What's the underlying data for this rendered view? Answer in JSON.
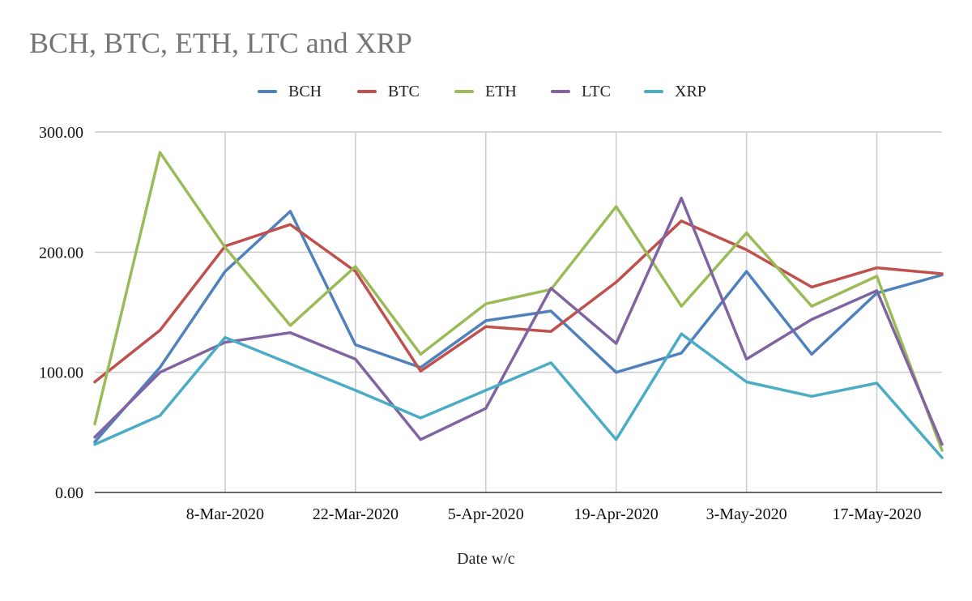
{
  "chart_data": {
    "type": "line",
    "title": "BCH, BTC, ETH, LTC and XRP",
    "xlabel": "Date w/c",
    "ylabel": "",
    "ylim": [
      0,
      300
    ],
    "yticks": [
      "0.00",
      "100.00",
      "200.00",
      "300.00"
    ],
    "x": [
      "23-Feb-2020",
      "1-Mar-2020",
      "8-Mar-2020",
      "15-Mar-2020",
      "22-Mar-2020",
      "29-Mar-2020",
      "5-Apr-2020",
      "12-Apr-2020",
      "19-Apr-2020",
      "26-Apr-2020",
      "3-May-2020",
      "10-May-2020",
      "17-May-2020",
      "24-May-2020"
    ],
    "xticks": [
      "8-Mar-2020",
      "22-Mar-2020",
      "5-Apr-2020",
      "19-Apr-2020",
      "3-May-2020",
      "17-May-2020"
    ],
    "grid": true,
    "legend_position": "top",
    "series": [
      {
        "name": "BCH",
        "color": "#4f81bd",
        "values": [
          42,
          104,
          184,
          234,
          123,
          104,
          143,
          151,
          100,
          116,
          184,
          115,
          166,
          181
        ]
      },
      {
        "name": "BTC",
        "color": "#c0504d",
        "values": [
          92,
          135,
          205,
          223,
          184,
          101,
          138,
          134,
          175,
          226,
          202,
          171,
          187,
          182
        ]
      },
      {
        "name": "ETH",
        "color": "#9bbb59",
        "values": [
          57,
          283,
          204,
          139,
          188,
          115,
          157,
          169,
          238,
          155,
          216,
          155,
          180,
          35
        ]
      },
      {
        "name": "LTC",
        "color": "#8064a2",
        "values": [
          46,
          100,
          125,
          133,
          111,
          44,
          70,
          170,
          124,
          245,
          111,
          144,
          168,
          40
        ]
      },
      {
        "name": "XRP",
        "color": "#4bacc6",
        "values": [
          40,
          64,
          129,
          107,
          85,
          62,
          85,
          108,
          44,
          132,
          92,
          80,
          91,
          29
        ]
      }
    ]
  }
}
